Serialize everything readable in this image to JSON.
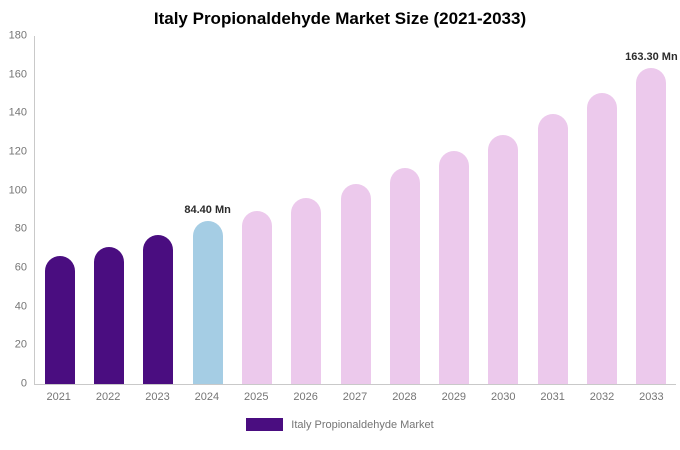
{
  "chart_data": {
    "type": "bar",
    "title": "Italy Propionaldehyde Market Size (2021-2033)",
    "categories": [
      "2021",
      "2022",
      "2023",
      "2024",
      "2025",
      "2026",
      "2027",
      "2028",
      "2029",
      "2030",
      "2031",
      "2032",
      "2033"
    ],
    "values": [
      66,
      71,
      77,
      84.4,
      89.5,
      96,
      103.5,
      111.5,
      120.5,
      129,
      139.5,
      150.5,
      163.3
    ],
    "bar_colors": [
      "#4a0d80",
      "#4a0d80",
      "#4a0d80",
      "#a5cde4",
      "#ecc9ec",
      "#ecc9ec",
      "#ecc9ec",
      "#ecc9ec",
      "#ecc9ec",
      "#ecc9ec",
      "#ecc9ec",
      "#ecc9ec",
      "#ecc9ec"
    ],
    "annotations": [
      {
        "index": 3,
        "text": "84.40 Mn"
      },
      {
        "index": 12,
        "text": "163.30 Mn"
      }
    ],
    "ylim": [
      0,
      180
    ],
    "yticks": [
      0,
      20,
      40,
      60,
      80,
      100,
      120,
      140,
      160,
      180
    ],
    "grid": false,
    "xlabel": "",
    "ylabel": "",
    "legend": {
      "position": "bottom",
      "items": [
        {
          "label": "Italy Propionaldehyde Market",
          "color": "#4a0d80"
        }
      ]
    }
  }
}
